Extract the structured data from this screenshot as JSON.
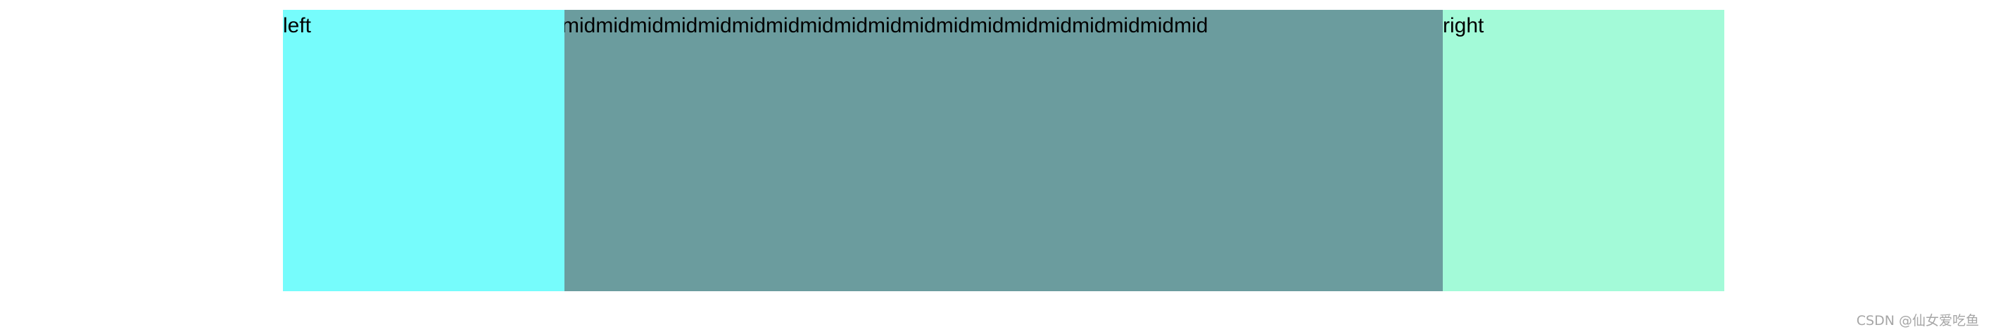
{
  "columns": {
    "left": {
      "label": "left",
      "color": "#76fcfc"
    },
    "mid": {
      "label": "midmidmidmidmidmidmidmidmidmidmidmidmidmidmidmidmidmidmid",
      "color": "#6b9c9e"
    },
    "right": {
      "label": "right",
      "color": "#a3fad8"
    }
  },
  "watermark": {
    "text": "CSDN @仙女爱吃鱼"
  }
}
